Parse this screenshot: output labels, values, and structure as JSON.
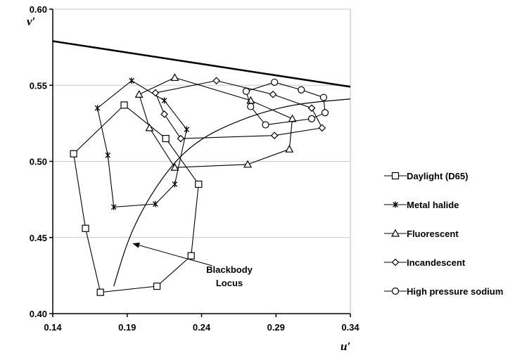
{
  "chart_data": {
    "type": "line",
    "xlabel": "u′",
    "ylabel": "v′",
    "xlim": [
      0.14,
      0.34
    ],
    "ylim": [
      0.4,
      0.6
    ],
    "x_ticks": [
      "0.14",
      "0.19",
      "0.24",
      "0.29",
      "0.34"
    ],
    "y_ticks": [
      "0.40",
      "0.45",
      "0.50",
      "0.55",
      "0.60"
    ],
    "grid": "horizontal",
    "legend_position": "right",
    "series": [
      {
        "name": "Daylight (D65)",
        "marker": "square",
        "points": [
          [
            0.188,
            0.537
          ],
          [
            0.216,
            0.515
          ],
          [
            0.238,
            0.485
          ],
          [
            0.233,
            0.438
          ],
          [
            0.21,
            0.418
          ],
          [
            0.172,
            0.414
          ],
          [
            0.162,
            0.456
          ],
          [
            0.154,
            0.505
          ],
          [
            0.188,
            0.537
          ]
        ]
      },
      {
        "name": "Metal halide",
        "marker": "star",
        "points": [
          [
            0.193,
            0.553
          ],
          [
            0.215,
            0.54
          ],
          [
            0.23,
            0.521
          ],
          [
            0.222,
            0.485
          ],
          [
            0.209,
            0.472
          ],
          [
            0.181,
            0.47
          ],
          [
            0.177,
            0.504
          ],
          [
            0.17,
            0.535
          ],
          [
            0.193,
            0.553
          ]
        ]
      },
      {
        "name": "Fluorescent",
        "marker": "triangle",
        "points": [
          [
            0.222,
            0.555
          ],
          [
            0.273,
            0.54
          ],
          [
            0.301,
            0.528
          ],
          [
            0.299,
            0.508
          ],
          [
            0.271,
            0.498
          ],
          [
            0.222,
            0.496
          ],
          [
            0.205,
            0.522
          ],
          [
            0.198,
            0.544
          ],
          [
            0.222,
            0.555
          ]
        ]
      },
      {
        "name": "Incandescent",
        "marker": "diamond",
        "points": [
          [
            0.25,
            0.553
          ],
          [
            0.288,
            0.544
          ],
          [
            0.314,
            0.535
          ],
          [
            0.321,
            0.522
          ],
          [
            0.289,
            0.517
          ],
          [
            0.226,
            0.515
          ],
          [
            0.215,
            0.531
          ],
          [
            0.209,
            0.545
          ],
          [
            0.25,
            0.553
          ]
        ]
      },
      {
        "name": "High pressure sodium",
        "marker": "circle",
        "points": [
          [
            0.289,
            0.552
          ],
          [
            0.307,
            0.547
          ],
          [
            0.322,
            0.542
          ],
          [
            0.323,
            0.532
          ],
          [
            0.314,
            0.528
          ],
          [
            0.283,
            0.524
          ],
          [
            0.273,
            0.536
          ],
          [
            0.27,
            0.546
          ],
          [
            0.289,
            0.552
          ]
        ]
      }
    ],
    "boundary_line": [
      [
        0.14,
        0.579
      ],
      [
        0.34,
        0.549
      ]
    ],
    "blackbody_locus": [
      [
        0.181,
        0.418
      ],
      [
        0.19,
        0.447
      ],
      [
        0.2,
        0.468
      ],
      [
        0.212,
        0.487
      ],
      [
        0.225,
        0.503
      ],
      [
        0.24,
        0.515
      ],
      [
        0.258,
        0.524
      ],
      [
        0.28,
        0.532
      ],
      [
        0.305,
        0.538
      ],
      [
        0.34,
        0.541
      ]
    ],
    "annotation": {
      "lines": [
        "Blackbody",
        "Locus"
      ],
      "arrow_to": [
        0.194,
        0.446
      ]
    }
  }
}
